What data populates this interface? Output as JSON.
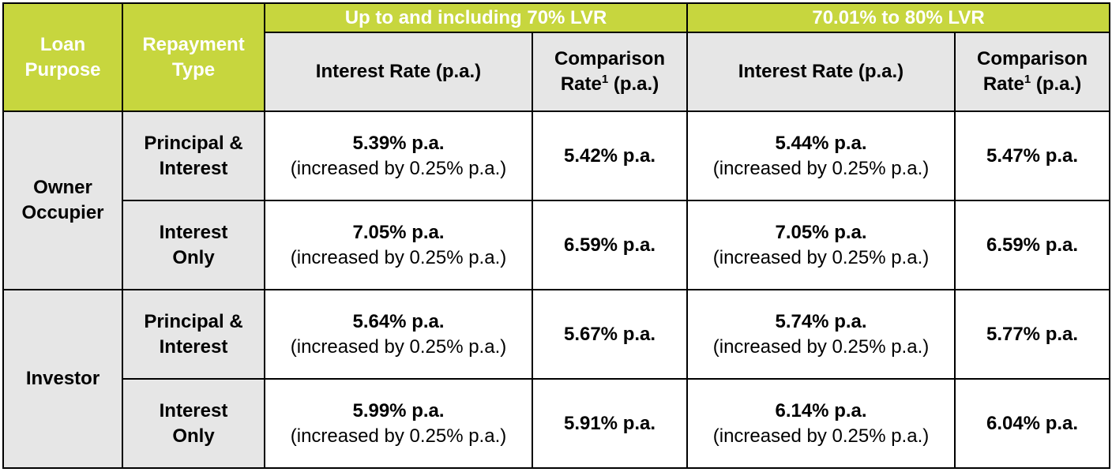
{
  "header": {
    "loan_purpose": "Loan Purpose",
    "repayment_type": "Repayment Type",
    "group1": "Up to and including 70% LVR",
    "group2": "70.01% to 80% LVR",
    "interest_rate": "Interest Rate (p.a.)",
    "comparison_line1": "Comparison",
    "comparison_rate_word": "Rate",
    "comparison_footnote": "1",
    "comparison_suffix": " (p.a.)"
  },
  "note": "(increased by 0.25% p.a.)",
  "purposes": [
    {
      "label": "Owner Occupier"
    },
    {
      "label": "Investor"
    }
  ],
  "rows": [
    {
      "type": "Principal & Interest",
      "rate1": "5.39% p.a.",
      "comp1": "5.42% p.a.",
      "rate2": "5.44% p.a.",
      "comp2": "5.47% p.a."
    },
    {
      "type": "Interest Only",
      "rate1": "7.05% p.a.",
      "comp1": "6.59% p.a.",
      "rate2": "7.05% p.a.",
      "comp2": "6.59% p.a."
    },
    {
      "type": "Principal & Interest",
      "rate1": "5.64% p.a.",
      "comp1": "5.67% p.a.",
      "rate2": "5.74% p.a.",
      "comp2": "5.77% p.a."
    },
    {
      "type": "Interest Only",
      "rate1": "5.99% p.a.",
      "comp1": "5.91% p.a.",
      "rate2": "6.14% p.a.",
      "comp2": "6.04% p.a."
    }
  ]
}
